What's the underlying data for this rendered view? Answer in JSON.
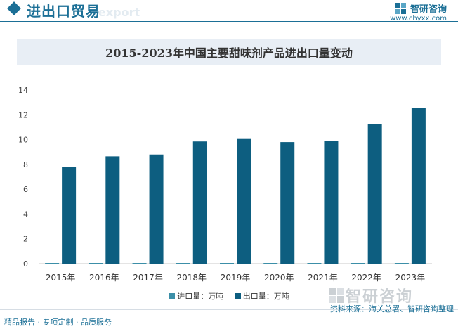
{
  "header": {
    "title": "进出口贸易",
    "ghost_text": "export",
    "brand_name": "智研咨询",
    "brand_url": "www.chyxx.com"
  },
  "chart_title": "2015-2023年中国主要甜味剂产品进出口量变动",
  "colors": {
    "accent": "#1b6f96",
    "import": "#3c8fa8",
    "export": "#0d5e80"
  },
  "chart_data": {
    "type": "bar",
    "categories": [
      "2015年",
      "2016年",
      "2017年",
      "2018年",
      "2019年",
      "2020年",
      "2021年",
      "2022年",
      "2023年"
    ],
    "series": [
      {
        "name": "进口量：万吨",
        "values": [
          0.02,
          0.02,
          0.02,
          0.02,
          0.02,
          0.02,
          0.02,
          0.02,
          0.02
        ]
      },
      {
        "name": "出口量：万吨",
        "values": [
          7.8,
          8.65,
          8.8,
          9.85,
          10.05,
          9.8,
          9.9,
          11.25,
          12.55
        ]
      }
    ],
    "y_ticks": [
      "0",
      "2",
      "4",
      "6",
      "8",
      "10",
      "12",
      "14"
    ],
    "ylim": [
      0,
      14
    ],
    "grid": false,
    "legend_position": "bottom"
  },
  "watermark": "智研咨询",
  "footer": {
    "left": "精品报告 · 专项定制 · 品质服务",
    "right": "资料来源：海关总署、智研咨询整理"
  }
}
